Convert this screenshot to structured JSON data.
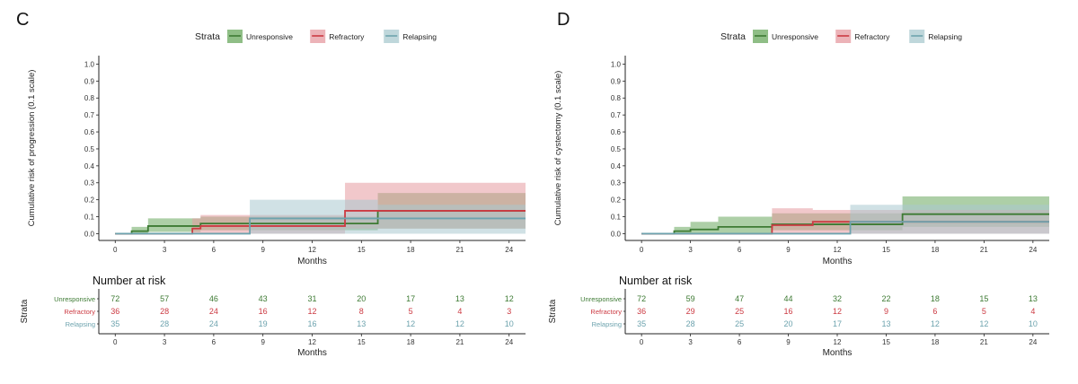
{
  "strata_colors": {
    "Unresponsive": "#3d7a33",
    "Refractory": "#cc3a42",
    "Relapsing": "#6da3ae"
  },
  "fill_colors": {
    "Unresponsive": "#6aa85e",
    "Refractory": "#e59aa0",
    "Relapsing": "#a9c9cf"
  },
  "panels": [
    {
      "letter": "C",
      "legend_title": "Strata",
      "ylabel": "Cumulative risk of progression (0.1 scale)",
      "xlabel": "Months",
      "risk_title": "Number at risk",
      "risk_ylabel": "Strata",
      "risk_xlabel": "Months"
    },
    {
      "letter": "D",
      "legend_title": "Strata",
      "ylabel": "Cumulative risk of cystectomy (0.1 scale)",
      "xlabel": "Months",
      "risk_title": "Number at risk",
      "risk_ylabel": "Strata",
      "risk_xlabel": "Months"
    }
  ],
  "chart_data": [
    {
      "type": "line",
      "panel": "C",
      "subtype": "cumulative-incidence step curves with confidence bands",
      "xlabel": "Months",
      "ylabel": "Cumulative risk of progression (0.1 scale)",
      "xlim": [
        -1,
        25
      ],
      "ylim": [
        -0.04,
        1.05
      ],
      "xticks": [
        "0",
        "3",
        "6",
        "9",
        "12",
        "15",
        "18",
        "21",
        "24"
      ],
      "yticks": [
        "0.0",
        "0.1",
        "0.2",
        "0.3",
        "0.4",
        "0.5",
        "0.6",
        "0.7",
        "0.8",
        "0.9",
        "1.0"
      ],
      "legend": {
        "title": "Strata",
        "position": "top",
        "entries": [
          "Unresponsive",
          "Refractory",
          "Relapsing"
        ]
      },
      "grid": false,
      "series": [
        {
          "name": "Unresponsive",
          "steps": [
            [
              0,
              0
            ],
            [
              1,
              0.015
            ],
            [
              2,
              0.045
            ],
            [
              4.7,
              0.045
            ],
            [
              5.2,
              0.06
            ],
            [
              16,
              0.085
            ],
            [
              16,
              0.135
            ],
            [
              25,
              0.135
            ]
          ],
          "ci_steps": [
            [
              0,
              0,
              0
            ],
            [
              1,
              0.0,
              0.04
            ],
            [
              2,
              0.01,
              0.09
            ],
            [
              5.2,
              0.02,
              0.1
            ],
            [
              16,
              0.03,
              0.24
            ],
            [
              25,
              0.03,
              0.24
            ]
          ]
        },
        {
          "name": "Refractory",
          "steps": [
            [
              0,
              0
            ],
            [
              4.7,
              0
            ],
            [
              4.7,
              0.03
            ],
            [
              5.2,
              0.03
            ],
            [
              5.2,
              0.045
            ],
            [
              14,
              0.045
            ],
            [
              14,
              0.135
            ],
            [
              25,
              0.135
            ]
          ],
          "ci_steps": [
            [
              0,
              0,
              0
            ],
            [
              4.7,
              0.0,
              0.09
            ],
            [
              5.2,
              0.0,
              0.11
            ],
            [
              14,
              0.03,
              0.3
            ],
            [
              25,
              0.03,
              0.3
            ]
          ]
        },
        {
          "name": "Relapsing",
          "steps": [
            [
              0,
              0
            ],
            [
              8.2,
              0
            ],
            [
              8.2,
              0.09
            ],
            [
              16,
              0.09
            ],
            [
              25,
              0.09
            ]
          ],
          "ci_steps": [
            [
              0,
              0,
              0
            ],
            [
              8.2,
              0.0,
              0.2
            ],
            [
              16,
              0.0,
              0.17
            ],
            [
              25,
              0.0,
              0.17
            ]
          ]
        }
      ],
      "risk_table": {
        "title": "Number at risk",
        "ylabel": "Strata",
        "xlabel": "Months",
        "times": [
          "0",
          "3",
          "6",
          "9",
          "12",
          "15",
          "18",
          "21",
          "24"
        ],
        "rows": [
          {
            "name": "Unresponsive",
            "values": [
              "72",
              "57",
              "46",
              "43",
              "31",
              "20",
              "17",
              "13",
              "12"
            ]
          },
          {
            "name": "Refractory",
            "values": [
              "36",
              "28",
              "24",
              "16",
              "12",
              "8",
              "5",
              "4",
              "3"
            ]
          },
          {
            "name": "Relapsing",
            "values": [
              "35",
              "28",
              "24",
              "19",
              "16",
              "13",
              "12",
              "12",
              "10"
            ]
          }
        ]
      }
    },
    {
      "type": "line",
      "panel": "D",
      "subtype": "cumulative-incidence step curves with confidence bands",
      "xlabel": "Months",
      "ylabel": "Cumulative risk of cystectomy (0.1 scale)",
      "xlim": [
        -1,
        25
      ],
      "ylim": [
        -0.04,
        1.05
      ],
      "xticks": [
        "0",
        "3",
        "6",
        "9",
        "12",
        "15",
        "18",
        "21",
        "24"
      ],
      "yticks": [
        "0.0",
        "0.1",
        "0.2",
        "0.3",
        "0.4",
        "0.5",
        "0.6",
        "0.7",
        "0.8",
        "0.9",
        "1.0"
      ],
      "legend": {
        "title": "Strata",
        "position": "top",
        "entries": [
          "Unresponsive",
          "Refractory",
          "Relapsing"
        ]
      },
      "grid": false,
      "series": [
        {
          "name": "Unresponsive",
          "steps": [
            [
              0,
              0
            ],
            [
              2,
              0
            ],
            [
              2,
              0.015
            ],
            [
              3,
              0.025
            ],
            [
              4.7,
              0.04
            ],
            [
              8,
              0.055
            ],
            [
              16,
              0.115
            ],
            [
              25,
              0.115
            ]
          ],
          "ci_steps": [
            [
              0,
              0,
              0
            ],
            [
              2,
              0.0,
              0.04
            ],
            [
              3,
              0.0,
              0.07
            ],
            [
              4.7,
              0.0,
              0.1
            ],
            [
              8,
              0.02,
              0.12
            ],
            [
              16,
              0.04,
              0.22
            ],
            [
              25,
              0.04,
              0.22
            ]
          ]
        },
        {
          "name": "Refractory",
          "steps": [
            [
              0,
              0
            ],
            [
              8,
              0
            ],
            [
              8,
              0.05
            ],
            [
              10.5,
              0.05
            ],
            [
              10.5,
              0.07
            ],
            [
              25,
              0.07
            ]
          ],
          "ci_steps": [
            [
              0,
              0,
              0
            ],
            [
              8,
              0.0,
              0.15
            ],
            [
              10.5,
              0.0,
              0.14
            ],
            [
              25,
              0.0,
              0.14
            ]
          ]
        },
        {
          "name": "Relapsing",
          "steps": [
            [
              0,
              0
            ],
            [
              12.8,
              0
            ],
            [
              12.8,
              0.07
            ],
            [
              25,
              0.07
            ]
          ],
          "ci_steps": [
            [
              0,
              0,
              0
            ],
            [
              12.8,
              0.0,
              0.17
            ],
            [
              25,
              0.0,
              0.17
            ]
          ]
        }
      ],
      "risk_table": {
        "title": "Number at risk",
        "ylabel": "Strata",
        "xlabel": "Months",
        "times": [
          "0",
          "3",
          "6",
          "9",
          "12",
          "15",
          "18",
          "21",
          "24"
        ],
        "rows": [
          {
            "name": "Unresponsive",
            "values": [
              "72",
              "59",
              "47",
              "44",
              "32",
              "22",
              "18",
              "15",
              "13"
            ]
          },
          {
            "name": "Refractory",
            "values": [
              "36",
              "29",
              "25",
              "16",
              "12",
              "9",
              "6",
              "5",
              "4"
            ]
          },
          {
            "name": "Relapsing",
            "values": [
              "35",
              "28",
              "25",
              "20",
              "17",
              "13",
              "12",
              "12",
              "10"
            ]
          }
        ]
      }
    }
  ]
}
